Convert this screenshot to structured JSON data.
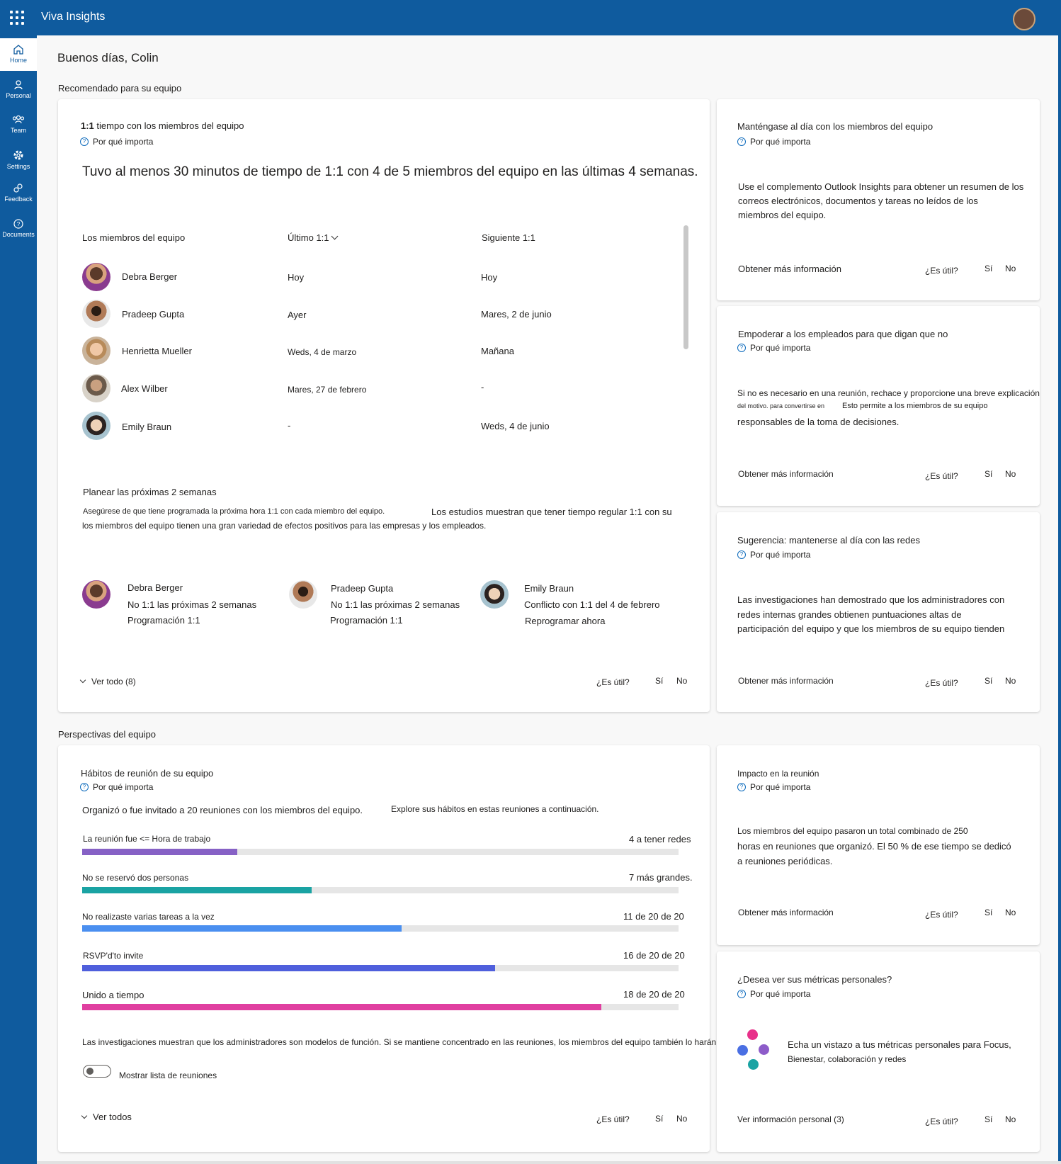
{
  "app": {
    "title": "Viva Insights"
  },
  "nav": {
    "items": [
      {
        "label": "Home",
        "icon": "home-icon",
        "active": true
      },
      {
        "label": "Personal",
        "icon": "person-icon"
      },
      {
        "label": "Team",
        "icon": "team-icon"
      },
      {
        "label": "Settings",
        "icon": "gear-icon"
      },
      {
        "label": "Feedback",
        "icon": "feedback-icon"
      },
      {
        "label": "Documents",
        "icon": "help-icon"
      }
    ]
  },
  "greeting": "Buenos días, Colin",
  "sections": {
    "recommended": "Recomendado para su equipo",
    "team_perspectives": "Perspectivas del equipo"
  },
  "common": {
    "why": "Por qué importa",
    "useful": "¿Es útil?",
    "yes": "Sí",
    "no": "No",
    "learn_more": "Obtener más información"
  },
  "one_on_one": {
    "title_bold": "1:1",
    "title_rest": " tiempo con los miembros del equipo",
    "headline": "Tuvo al menos 30 minutos de tiempo de 1:1 con 4 de 5 miembros del equipo en las últimas 4 semanas.",
    "columns": [
      "Los miembros del equipo",
      "Último 1:1",
      "Siguiente 1:1"
    ],
    "rows": [
      {
        "name": "Debra Berger",
        "last": "Hoy",
        "next": "Hoy"
      },
      {
        "name": "Pradeep Gupta",
        "last": "Ayer",
        "next": "Mares, 2 de junio"
      },
      {
        "name": "Henrietta Mueller",
        "last": "Weds, 4 de marzo",
        "next": "Mañana"
      },
      {
        "name": "Alex Wilber",
        "last": "Mares, 27 de febrero",
        "next": "-"
      },
      {
        "name": "Emily Braun",
        "last": "-",
        "next": "Weds, 4 de junio"
      }
    ],
    "plan_title": "Planear las próximas 2 semanas",
    "plan_text_1": "Asegúrese de que tiene programada la próxima hora 1:1 con cada miembro del equipo.",
    "plan_text_2": "Los estudios muestran que tener tiempo regular 1:1 con su",
    "plan_text_3": "los miembros del equipo tienen una gran variedad de efectos positivos para las empresas y los empleados.",
    "plan_people": [
      {
        "name": "Debra Berger",
        "status": "No 1:1 las próximas 2 semanas",
        "action": "Programación 1:1"
      },
      {
        "name": "Pradeep Gupta",
        "status": "No 1:1 las próximas 2 semanas",
        "action": "Programación 1:1"
      },
      {
        "name": "Emily Braun",
        "status": "Conflicto con 1:1 del 4 de febrero",
        "action": "Reprogramar ahora"
      }
    ],
    "see_all": "Ver todo (8)"
  },
  "side_cards": [
    {
      "title": "Manténgase al día con los miembros del equipo",
      "lines": [
        "Use el complemento Outlook Insights para obtener un resumen de los",
        "correos electrónicos, documentos y tareas no leídos de los",
        "miembros del equipo."
      ]
    },
    {
      "title": "Empoderar a los empleados para que digan que no",
      "lines": [
        "Si no es necesario en una reunión, rechace y proporcione una breve explicación",
        "del motivo. para convertirse en",
        "Esto permite a los miembros de su equipo",
        "responsables de la toma de decisiones."
      ]
    },
    {
      "title": "Sugerencia: mantenerse al día con las redes",
      "lines": [
        "Las investigaciones han demostrado que los administradores con",
        "redes internas grandes obtienen puntuaciones altas de",
        "participación del equipo y que los miembros de su equipo tienden"
      ]
    },
    {
      "title": "Impacto en la reunión",
      "lines": [
        "Los miembros del equipo pasaron un total combinado de 250",
        "horas en reuniones que organizó. El 50 % de ese tiempo se dedicó",
        "a reuniones periódicas."
      ]
    },
    {
      "title": "¿Desea ver sus métricas personales?",
      "lines": [
        "Echa un vistazo a tus métricas personales para Focus,",
        "Bienestar, colaboración y redes"
      ],
      "link": "Ver información personal (3)"
    }
  ],
  "habits": {
    "title": "Hábitos de reunión de su equipo",
    "summary_1": "Organizó o fue invitado a 20 reuniones con los miembros del equipo.",
    "summary_2": "Explore sus hábitos en estas reuniones a continuación.",
    "bars": [
      {
        "label": "La reunión fue  <=  Hora de trabajo",
        "value": "4 a tener redes",
        "fraction": 0.26,
        "color": "#8661c5"
      },
      {
        "label": "No se reservó dos personas",
        "value": "7 más grandes.",
        "fraction": 0.385,
        "color": "#1aa3a3"
      },
      {
        "label": "No realizaste varias tareas a la vez",
        "value": "11  de 20 de 20",
        "fraction": 0.536,
        "color": "#4a8ff0"
      },
      {
        "label": "RSVP'd'to invite",
        "value": "16  de 20 de 20",
        "fraction": 0.692,
        "color": "#4f5fdc"
      },
      {
        "label": "Unido a tiempo",
        "value": "18  de 20 de 20",
        "fraction": 0.87,
        "color": "#e03fa0"
      }
    ],
    "research": "Las investigaciones muestran que los administradores son modelos de función. Si se mantiene concentrado en las reuniones, los miembros del equipo también lo harán",
    "toggle_label": "Mostrar lista de reuniones",
    "see_all": "Ver todos"
  },
  "colors": {
    "brand": "#0f5b9e",
    "link": "#0f6cbd"
  }
}
